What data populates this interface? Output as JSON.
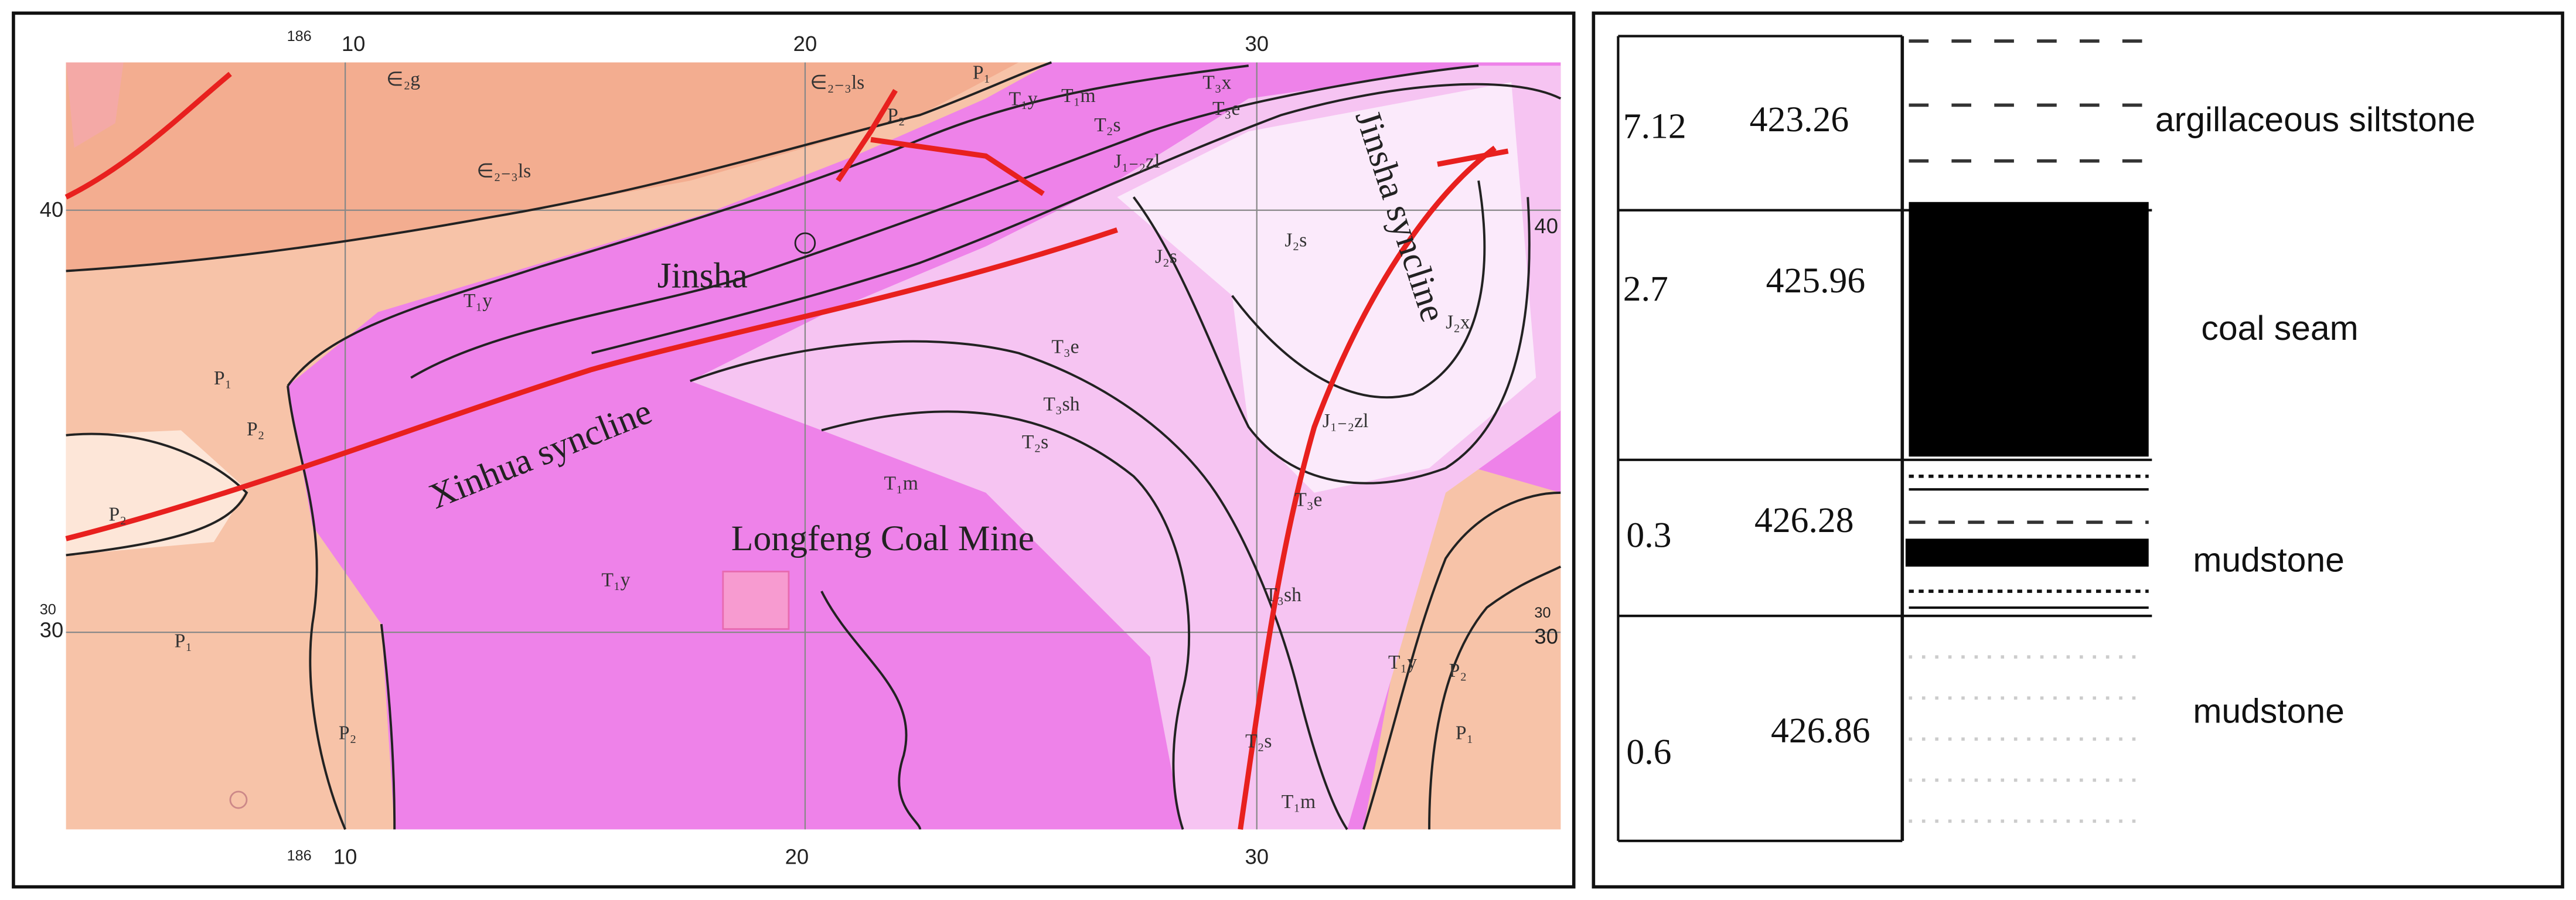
{
  "map": {
    "grid_labels": {
      "top": [
        "186",
        "10",
        "20",
        "30"
      ],
      "bottom": [
        "186",
        "10",
        "20",
        "30"
      ],
      "left": [
        "40",
        "30",
        "30"
      ],
      "right": [
        "40",
        "30",
        "30"
      ]
    },
    "place_names": [
      "Jinsha",
      "Xinhua syncline",
      "Longfeng Coal Mine",
      "Jinsha syncline"
    ],
    "formations": [
      "∈₂g",
      "∈₂₋₃ls",
      "∈₂₋₃ls",
      "P₂",
      "P₁",
      "T₁y",
      "T₁m",
      "T₂s",
      "T₃x",
      "T₃e",
      "J₁₋₂zl",
      "J₂s",
      "J₂s",
      "J₂x",
      "T₁y",
      "P₁",
      "P₂",
      "P₂",
      "T₃e",
      "T₃sh",
      "T₂s",
      "J₁₋₂zl",
      "T₃e",
      "T₁m",
      "T₁y",
      "T₃sh",
      "P₁",
      "P₂",
      "T₁y",
      "P₂",
      "P₁",
      "T₂s",
      "T₁m"
    ]
  },
  "column": {
    "rows": [
      {
        "thickness": "7.12",
        "depth": "423.26",
        "lithology": "argillaceous siltstone"
      },
      {
        "thickness": "2.7",
        "depth": "425.96",
        "lithology": "coal seam"
      },
      {
        "thickness": "0.3",
        "depth": "426.28",
        "lithology": "mudstone"
      },
      {
        "thickness": "0.6",
        "depth": "426.86",
        "lithology": "mudstone"
      }
    ]
  }
}
